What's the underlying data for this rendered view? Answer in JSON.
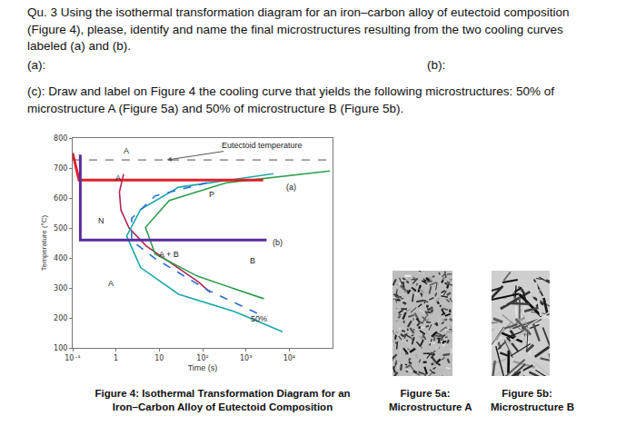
{
  "question": {
    "lines": [
      "Qu. 3 Using the isothermal transformation diagram for an iron–carbon alloy of eutectoid composition",
      "(Figure 4), please, identify and name the final microstructures resulting from the two cooling curves",
      "labeled (a) and (b)."
    ]
  },
  "answers": {
    "a": "(a):",
    "b": "(b):"
  },
  "part_c": {
    "lines": [
      "(c): Draw and label on Figure 4 the cooling curve that yields the following microstructures: 50% of",
      "microstructure A (Figure 5a) and 50% of microstructure B (Figure 5b)."
    ]
  },
  "figure4_caption": [
    "Figure 4: Isothermal Transformation Diagram for an",
    "Iron–Carbon Alloy of Eutectoid Composition"
  ],
  "figure5": [
    {
      "caption": [
        "Figure 5a:",
        "Microstructure A"
      ]
    },
    {
      "caption": [
        "Figure 5b:",
        "Microstructure B"
      ]
    }
  ],
  "chart_data": {
    "type": "line",
    "xlabel": "Time (s)",
    "ylabel": "Temperature (°C)",
    "log": "x",
    "grid": false,
    "xlim": [
      0.1,
      100000
    ],
    "xticks": [
      {
        "value": 0.1,
        "label": "10⁻¹"
      },
      1,
      10,
      {
        "value": 100,
        "label": "10²"
      },
      {
        "value": 1000,
        "label": "10³"
      },
      {
        "value": 10000,
        "label": "10⁴"
      }
    ],
    "ylim": [
      100,
      800
    ],
    "yticks": [
      100,
      200,
      300,
      400,
      500,
      600,
      700,
      800
    ],
    "series": [
      {
        "color": "#9a9a9a",
        "line_style": "dashed",
        "x": [
          0.1,
          100000
        ],
        "y": [
          727,
          727
        ]
      },
      {
        "color": "#b0264f",
        "line_style": "solid",
        "x": [
          1.5,
          1.2,
          1.3,
          2,
          5,
          20,
          80,
          150
        ],
        "y": [
          680,
          620,
          560,
          500,
          440,
          380,
          320,
          285
        ]
      },
      {
        "color": "#1aa8a8",
        "line_style": "solid",
        "x": [
          4300,
          28,
          3.7,
          1.76,
          3.7,
          28,
          575,
          7000
        ],
        "y": [
          681,
          636,
          562,
          473,
          368,
          279,
          220,
          154
        ]
      },
      {
        "color": "#2a6fd6",
        "line_style": "dashed",
        "x": [
          126,
          8,
          2.3,
          2.3,
          8,
          126,
          2600
        ],
        "y": [
          651,
          607,
          532,
          458,
          398,
          294,
          205
        ]
      },
      {
        "color": "#2e9e4a",
        "line_style": "solid",
        "x": [
          87000,
          350,
          17,
          4.8,
          8,
          76,
          2600
        ],
        "y": [
          690,
          651,
          592,
          502,
          413,
          339,
          264
        ]
      },
      {
        "color": "#e0202a",
        "line_style": "bold",
        "x": [
          0.1,
          0.14,
          2500
        ],
        "y": [
          750,
          660,
          660
        ]
      },
      {
        "color": "#5b2d9e",
        "line_style": "bold",
        "x": [
          0.15,
          0.15,
          3000
        ],
        "y": [
          745,
          460,
          460
        ]
      }
    ],
    "annotations": [
      {
        "text": "A",
        "x": 1.7,
        "y": 757
      },
      {
        "text": "A",
        "x": 1.1,
        "y": 668
      },
      {
        "text": "P",
        "x": 160,
        "y": 612
      },
      {
        "text": "N",
        "x": 0.45,
        "y": 523
      },
      {
        "text": "A + B",
        "x": 17,
        "y": 413
      },
      {
        "text": "B",
        "x": 1400,
        "y": 392
      },
      {
        "text": "A",
        "x": 0.75,
        "y": 315
      },
      {
        "text": "50%",
        "x": 2000,
        "y": 196
      },
      {
        "text": "(a)",
        "x": 11000,
        "y": 636
      },
      {
        "text": "(b)",
        "x": 5500,
        "y": 452
      }
    ],
    "arrow_annotations": [
      {
        "text": "Eutectoid temperature",
        "x": 15,
        "y": 727
      }
    ]
  }
}
